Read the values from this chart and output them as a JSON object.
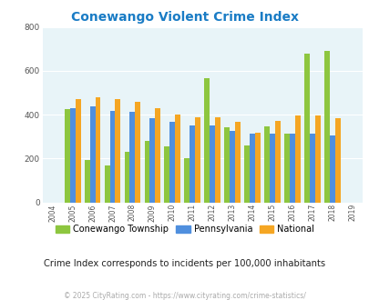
{
  "title": "Conewango Violent Crime Index",
  "title_color": "#1a7cc5",
  "years": [
    2005,
    2006,
    2007,
    2008,
    2009,
    2010,
    2011,
    2012,
    2013,
    2014,
    2015,
    2016,
    2017,
    2018
  ],
  "conewango": [
    425,
    193,
    168,
    230,
    280,
    255,
    203,
    565,
    343,
    260,
    348,
    315,
    680,
    690
  ],
  "pennsylvania": [
    428,
    440,
    418,
    415,
    383,
    368,
    352,
    350,
    325,
    315,
    315,
    315,
    315,
    305
  ],
  "national": [
    472,
    480,
    472,
    457,
    430,
    403,
    388,
    388,
    368,
    318,
    373,
    398,
    398,
    383
  ],
  "conewango_color": "#8dc63f",
  "pennsylvania_color": "#4f8fde",
  "national_color": "#f5a623",
  "bg_color": "#e8f4f8",
  "ylim": [
    0,
    800
  ],
  "yticks": [
    0,
    200,
    400,
    600,
    800
  ],
  "bar_width": 0.27,
  "legend_labels": [
    "Conewango Township",
    "Pennsylvania",
    "National"
  ],
  "subtitle": "Crime Index corresponds to incidents per 100,000 inhabitants",
  "subtitle_color": "#222222",
  "copyright": "© 2025 CityRating.com - https://www.cityrating.com/crime-statistics/",
  "copyright_color": "#aaaaaa",
  "all_xtick_years": [
    2004,
    2005,
    2006,
    2007,
    2008,
    2009,
    2010,
    2011,
    2012,
    2013,
    2014,
    2015,
    2016,
    2017,
    2018,
    2019
  ]
}
